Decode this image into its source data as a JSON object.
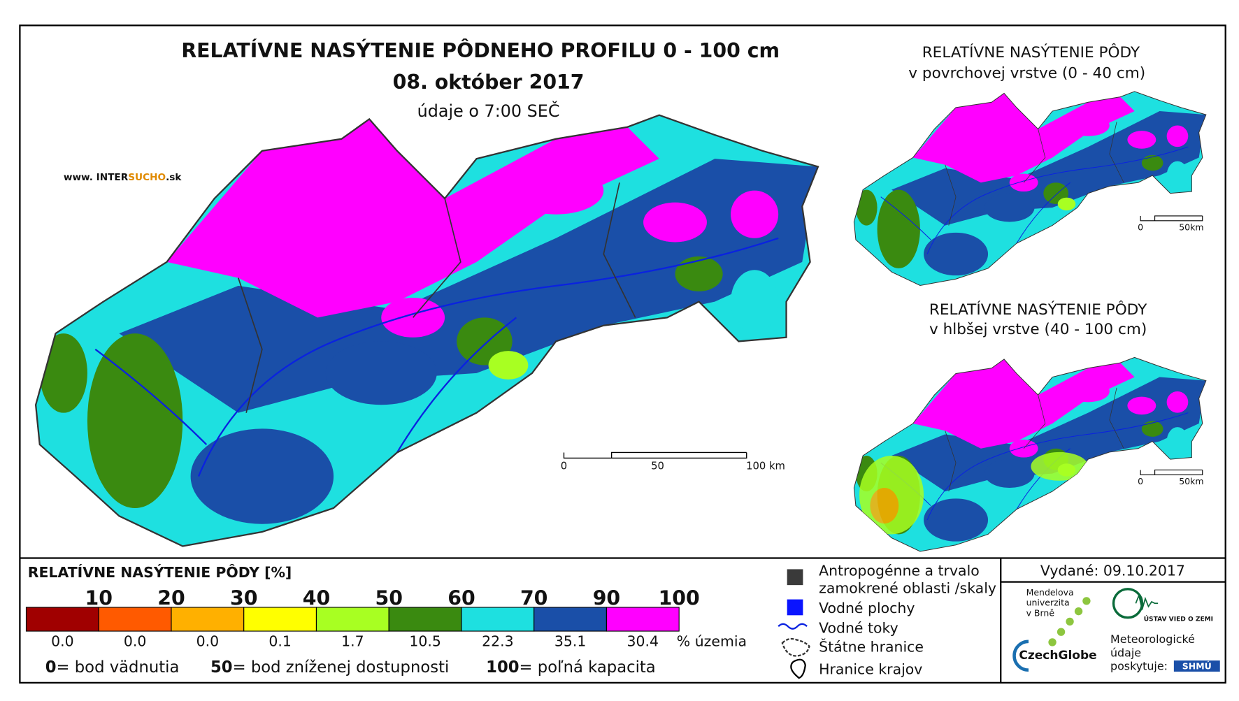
{
  "map_title": "RELATÍVNE NASÝTENIE PÔDNEHO PROFILU 0 - 100 cm",
  "date": "08. október 2017",
  "time_note": "údaje o 7:00 SEČ",
  "website": {
    "prefix": "www. INTER",
    "highlight": "SUCHO",
    "suffix": ".sk"
  },
  "main_scale": [
    "0",
    "50",
    "100 km"
  ],
  "insets": [
    {
      "title": "RELATÍVNE NASÝTENIE PÔDY",
      "subtitle": "v povrchovej vrstve (0 - 40 cm)",
      "scale": [
        "0",
        "50km"
      ]
    },
    {
      "title": "RELATÍVNE NASÝTENIE PÔDY",
      "subtitle": "v hlbšej vrstve (40 - 100 cm)",
      "scale": [
        "0",
        "50km"
      ]
    }
  ],
  "legend": {
    "title": "RELATÍVNE NASÝTENIE PÔDY [%]",
    "classes": [
      {
        "limit": "10",
        "color": "#a00000",
        "share": "0.0"
      },
      {
        "limit": "20",
        "color": "#ff5a00",
        "share": "0.0"
      },
      {
        "limit": "30",
        "color": "#ffb000",
        "share": "0.0"
      },
      {
        "limit": "40",
        "color": "#ffff00",
        "share": "0.1"
      },
      {
        "limit": "50",
        "color": "#a8ff22",
        "share": "1.7"
      },
      {
        "limit": "60",
        "color": "#3a8a10",
        "share": "10.5"
      },
      {
        "limit": "70",
        "color": "#1ee0e0",
        "share": "22.3"
      },
      {
        "limit": "90",
        "color": "#1a4fa8",
        "share": "35.1"
      },
      {
        "limit": "100",
        "color": "#ff00ff",
        "share": "30.4"
      }
    ],
    "share_unit": "% územia",
    "notes": [
      {
        "key": "0",
        "text": "= bod vädnutia"
      },
      {
        "key": "50",
        "text": "= bod zníženej dostupnosti"
      },
      {
        "key": "100",
        "text": "= poľná kapacita"
      }
    ]
  },
  "symbols": [
    {
      "lines": [
        "Antropogénne a trvalo",
        "zamokrené oblasti /skaly"
      ]
    },
    {
      "lines": [
        "Vodné plochy"
      ]
    },
    {
      "lines": [
        "Vodné toky"
      ]
    },
    {
      "lines": [
        "Štátne hranice"
      ]
    },
    {
      "lines": [
        "Hranice krajov"
      ]
    }
  ],
  "issued": "Vydané: 09.10.2017",
  "logos": {
    "mendel": [
      "Mendelova",
      "univerzita",
      "v Brně"
    ],
    "czechglobe": "CzechGlobe",
    "ustav": "ÚSTAV VIED O ZEMI",
    "meteo": [
      "Meteorologické",
      "údaje",
      "poskytuje:"
    ],
    "shmu": "SHMÚ"
  }
}
